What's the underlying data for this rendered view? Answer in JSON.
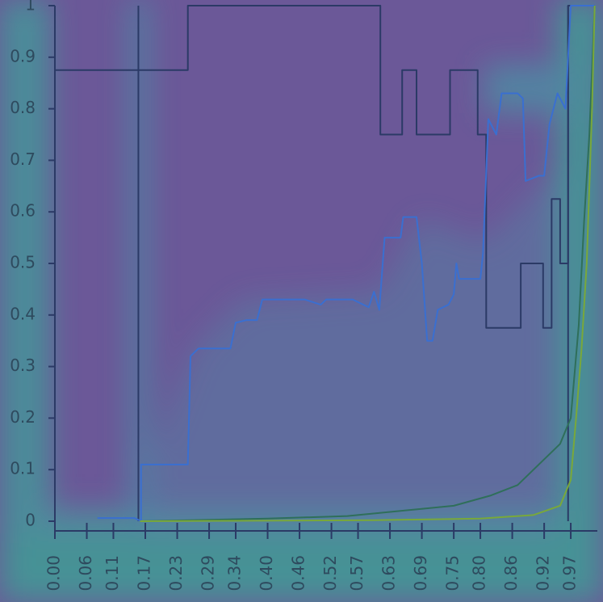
{
  "chart_data": {
    "type": "line",
    "xlim": [
      0,
      1.02
    ],
    "ylim": [
      0,
      1
    ],
    "yticks": [
      0,
      0.1,
      0.2,
      0.3,
      0.4,
      0.5,
      0.6,
      0.7,
      0.8,
      0.9,
      1
    ],
    "xticks": [
      {
        "value": 0,
        "label": "0.00"
      },
      {
        "value": 0.06,
        "label": "0.06"
      },
      {
        "value": 0.11,
        "label": "0.11"
      },
      {
        "value": 0.17,
        "label": "0.17"
      },
      {
        "value": 0.23,
        "label": "0.23"
      },
      {
        "value": 0.29,
        "label": "0.29"
      },
      {
        "value": 0.34,
        "label": "0.34"
      },
      {
        "value": 0.4,
        "label": "0.40"
      },
      {
        "value": 0.46,
        "label": "0.46"
      },
      {
        "value": 0.52,
        "label": "0.52"
      },
      {
        "value": 0.57,
        "label": "0.57"
      },
      {
        "value": 0.63,
        "label": "0.63"
      },
      {
        "value": 0.69,
        "label": "0.69"
      },
      {
        "value": 0.75,
        "label": "0.75"
      },
      {
        "value": 0.8,
        "label": "0.80"
      },
      {
        "value": 0.86,
        "label": "0.86"
      },
      {
        "value": 0.92,
        "label": "0.92"
      },
      {
        "value": 0.97,
        "label": "0.97"
      }
    ],
    "series": [
      {
        "color": "#2b3a66",
        "x": [
          0,
          0.25,
          0.25,
          0.612,
          0.612,
          0.653,
          0.653,
          0.68,
          0.68,
          0.743,
          0.743,
          0.795,
          0.795,
          0.811,
          0.811,
          0.876,
          0.876,
          0.918,
          0.918,
          0.934,
          0.934,
          0.95,
          0.95,
          0.965,
          0.965,
          1.015
        ],
        "values": [
          0.875,
          0.875,
          1,
          1,
          0.75,
          0.75,
          0.875,
          0.875,
          0.75,
          0.75,
          0.875,
          0.875,
          0.75,
          0.75,
          0.375,
          0.375,
          0.5,
          0.5,
          0.375,
          0.375,
          0.625,
          0.625,
          0.5,
          0.5,
          1,
          1
        ]
      },
      {
        "color": "#2b3a66",
        "x": [
          0.157,
          0.157,
          null,
          0.965,
          0.965
        ],
        "values": [
          0,
          1,
          null,
          0,
          1
        ]
      },
      {
        "color": "#3a6fd0",
        "x": [
          0.08,
          0.15,
          0.162,
          0.162,
          0.25,
          0.255,
          0.27,
          0.33,
          0.34,
          0.36,
          0.38,
          0.39,
          0.47,
          0.5,
          0.51,
          0.56,
          0.59,
          0.6,
          0.61,
          0.62,
          0.65,
          0.655,
          0.68,
          0.69,
          0.7,
          0.71,
          0.72,
          0.74,
          0.75,
          0.755,
          0.76,
          0.8,
          0.805,
          0.815,
          0.83,
          0.84,
          0.87,
          0.88,
          0.885,
          0.91,
          0.92,
          0.93,
          0.945,
          0.96,
          0.97,
          1.015
        ],
        "values": [
          0.006,
          0.006,
          0,
          0.11,
          0.11,
          0.32,
          0.335,
          0.335,
          0.385,
          0.39,
          0.39,
          0.43,
          0.43,
          0.42,
          0.43,
          0.43,
          0.415,
          0.445,
          0.41,
          0.55,
          0.55,
          0.59,
          0.59,
          0.5,
          0.35,
          0.35,
          0.41,
          0.42,
          0.44,
          0.5,
          0.47,
          0.47,
          0.52,
          0.78,
          0.75,
          0.83,
          0.83,
          0.82,
          0.66,
          0.67,
          0.67,
          0.77,
          0.83,
          0.8,
          1,
          1
        ]
      },
      {
        "color": "#2f6f5a",
        "x": [
          0.16,
          0.4,
          0.55,
          0.65,
          0.75,
          0.82,
          0.87,
          0.9,
          0.93,
          0.95,
          0.97,
          0.985,
          0.995,
          1.005,
          1.015
        ],
        "values": [
          0,
          0.005,
          0.01,
          0.02,
          0.03,
          0.05,
          0.07,
          0.1,
          0.13,
          0.15,
          0.2,
          0.38,
          0.58,
          0.75,
          1
        ]
      },
      {
        "color": "#79a83a",
        "x": [
          0.16,
          0.6,
          0.8,
          0.9,
          0.95,
          0.97,
          0.98,
          0.99,
          1.0,
          1.01,
          1.015
        ],
        "values": [
          0,
          0.002,
          0.005,
          0.012,
          0.03,
          0.08,
          0.2,
          0.33,
          0.5,
          0.8,
          1
        ]
      }
    ]
  }
}
